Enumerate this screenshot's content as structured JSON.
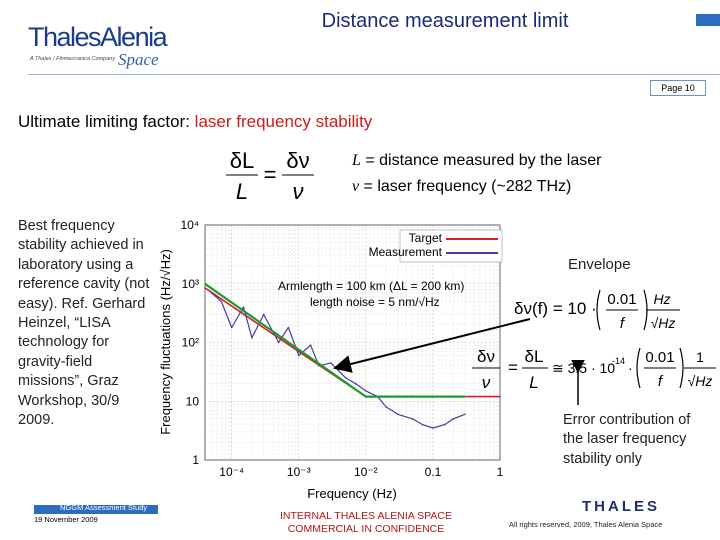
{
  "header": {
    "logo_text": "ThalesAlenia",
    "logo_tagline": "A Thales / Finmeccanica Company",
    "logo_space": "Space",
    "title": "Distance measurement limit",
    "page_label": "Page 10"
  },
  "subtitle": {
    "prefix": "Ultimate limiting factor: ",
    "highlight": "laser frequency stability"
  },
  "definitions": {
    "l_symbol": "L",
    "l_text": " = distance measured by the laser",
    "nu_symbol": "ν",
    "nu_text": " = laser frequency (~282 THz)"
  },
  "left_note": "Best frequency stability achieved in laboratory using a reference cavity (not easy). Ref. Gerhard Heinzel, “LISA technology for gravity-field missions”, Graz Workshop, 30/9 2009.",
  "envelope_label": "Envelope",
  "error_note": "Error contribution of the laser frequency stability only",
  "chart_data": {
    "type": "line",
    "xlabel": "Frequency (Hz)",
    "ylabel": "Frequency fluctuations (Hz/√Hz)",
    "x_scale": "log",
    "y_scale": "log",
    "xlim": [
      4e-05,
      1
    ],
    "ylim": [
      1,
      10000
    ],
    "x_ticks": [
      "10⁻⁴",
      "10⁻³",
      "10⁻²",
      "0.1",
      "1"
    ],
    "y_ticks": [
      "1",
      "10",
      "10²",
      "10³",
      "10⁴"
    ],
    "grid": true,
    "legend_position": "top-right",
    "legend": [
      "Target",
      "Measurement"
    ],
    "annotations": [
      "Armlength = 100 km (ΔL = 200 km)",
      "length noise = 5 nm/√Hz"
    ],
    "series": [
      {
        "name": "Target",
        "color": "#d42020",
        "x": [
          4e-05,
          0.001,
          0.01,
          1
        ],
        "y": [
          850,
          70,
          12,
          12
        ]
      },
      {
        "name": "Measurement",
        "color": "#4b3aa6",
        "x": [
          5e-05,
          7e-05,
          0.0001,
          0.00015,
          0.0002,
          0.0003,
          0.0005,
          0.0007,
          0.001,
          0.0015,
          0.002,
          0.003,
          0.005,
          0.007,
          0.01,
          0.015,
          0.02,
          0.03,
          0.05,
          0.07,
          0.1,
          0.15,
          0.2,
          0.3
        ],
        "y": [
          700,
          500,
          180,
          400,
          120,
          300,
          100,
          180,
          60,
          90,
          40,
          45,
          25,
          20,
          15,
          12,
          8,
          6,
          5,
          4,
          3.5,
          4,
          5,
          6
        ]
      },
      {
        "name": "Envelope",
        "color": "#1e9a2e",
        "x": [
          4e-05,
          0.01,
          0.3
        ],
        "y": [
          1000,
          12,
          12
        ]
      }
    ]
  },
  "equations": {
    "top_left": "δL",
    "top_den": "L",
    "top_nu": "δν",
    "top_nu_den": "ν",
    "env_lhs": "δν(f) = 10 ·",
    "env_num": "0.01",
    "env_den": "f",
    "env_unit_num": "Hz",
    "env_unit_den": "√Hz",
    "err_mult": "≅ 3.5 · 10",
    "err_exp": "-14",
    "err_unit_num": "1",
    "err_unit_den": "√Hz"
  },
  "footer": {
    "study": "NGGM Assessment Study",
    "date": "19 November 2009",
    "internal_1": "INTERNAL THALES ALENIA SPACE",
    "internal_2": "COMMERCIAL IN CONFIDENCE",
    "rights": "All rights reserved, 2009, Thales Alenia Space",
    "brand": "THALES"
  }
}
